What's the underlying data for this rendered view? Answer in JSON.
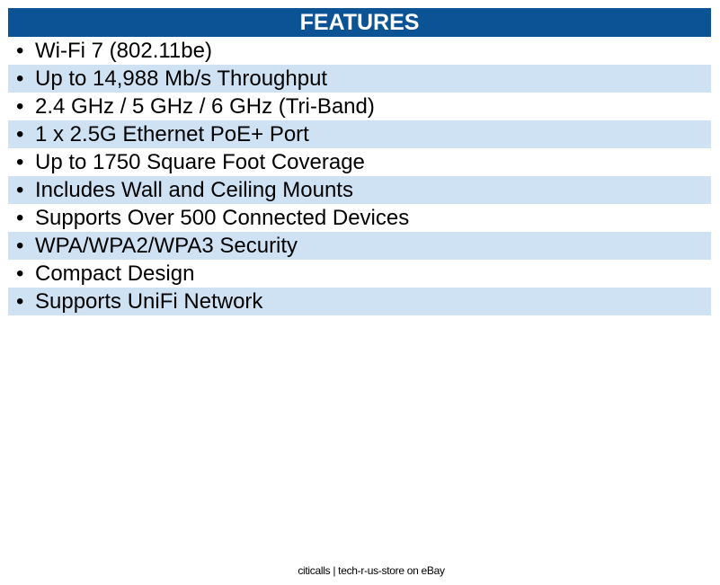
{
  "header": {
    "title": "FEATURES"
  },
  "bullet": "•",
  "features": [
    "Wi-Fi 7 (802.11be)",
    "Up to 14,988 Mb/s Throughput",
    "2.4 GHz / 5 GHz / 6 GHz (Tri-Band)",
    "1 x 2.5G Ethernet PoE+ Port",
    "Up to 1750 Square Foot Coverage",
    "Includes Wall and Ceiling Mounts",
    "Supports Over 500 Connected Devices",
    "WPA/WPA2/WPA3 Security",
    "Compact Design",
    "Supports UniFi Network"
  ],
  "footer": {
    "text": "citicalls | tech-r-us-store on eBay"
  },
  "colors": {
    "header_bg": "#0b5394",
    "stripe": "#cfe2f3"
  }
}
